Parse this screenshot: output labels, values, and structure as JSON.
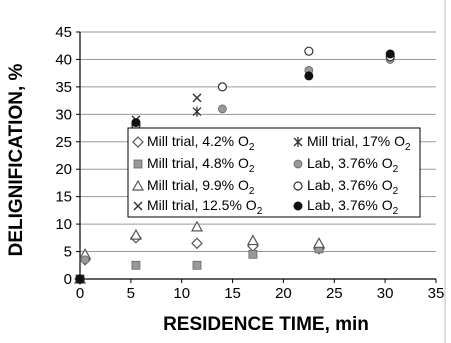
{
  "chart_data": {
    "type": "scatter",
    "title": "",
    "xlabel": "RESIDENCE TIME, min",
    "ylabel": "DELIGNIFICATION, %",
    "xlim": [
      0,
      35
    ],
    "ylim": [
      0,
      45
    ],
    "xticks": [
      0,
      5,
      10,
      15,
      20,
      25,
      30,
      35
    ],
    "yticks": [
      0,
      5,
      10,
      15,
      20,
      25,
      30,
      35,
      40,
      45
    ],
    "grid": "horizontal",
    "legend_position": "center",
    "series": [
      {
        "name": "Mill trial, 4.2% O",
        "sub": "2",
        "marker": "diamond-open",
        "color": "#555555",
        "x": [
          0,
          0.5,
          5.5,
          11.5,
          17,
          23.5
        ],
        "y": [
          0,
          3.5,
          7.5,
          6.5,
          6,
          5.5
        ]
      },
      {
        "name": "Mill trial, 4.8% O",
        "sub": "2",
        "marker": "square-filled",
        "color": "#999999",
        "x": [
          0,
          5.5,
          11.5,
          17,
          23.5
        ],
        "y": [
          0,
          2.5,
          2.5,
          4.5,
          5.5
        ]
      },
      {
        "name": "Mill trial, 9.9% O",
        "sub": "2",
        "marker": "triangle-open",
        "color": "#555555",
        "x": [
          0,
          0.5,
          5.5,
          11.5,
          17,
          23.5
        ],
        "y": [
          0,
          4.5,
          8,
          9.5,
          7,
          6.5
        ]
      },
      {
        "name": "Mill trial, 12.5% O",
        "sub": "2",
        "marker": "x",
        "color": "#333333",
        "x": [
          0,
          5.5,
          11.5
        ],
        "y": [
          0,
          29,
          33
        ]
      },
      {
        "name": "Mill trial, 17% O",
        "sub": "2",
        "marker": "asterisk",
        "color": "#333333",
        "x": [
          0,
          11.5
        ],
        "y": [
          0,
          30.5
        ]
      },
      {
        "name": "Lab, 3.76% O",
        "sub": "2",
        "marker": "circle-gray",
        "color": "#999999",
        "x": [
          0,
          0.5,
          5.5,
          14,
          22.5,
          30.5
        ],
        "y": [
          0,
          3.5,
          27.5,
          31,
          38,
          40
        ]
      },
      {
        "name": "Lab, 3.76% O",
        "sub": "2",
        "marker": "circle-open",
        "color": "#333333",
        "x": [
          0,
          5.5,
          14,
          22.5,
          30.5
        ],
        "y": [
          0,
          28,
          35,
          41.5,
          40.5
        ]
      },
      {
        "name": "Lab, 3.76% O",
        "sub": "2",
        "marker": "circle-filled",
        "color": "#111111",
        "x": [
          0,
          5.5,
          22.5,
          30.5
        ],
        "y": [
          0,
          28.5,
          37,
          41
        ]
      }
    ],
    "legend_layout": [
      [
        0,
        4
      ],
      [
        1,
        5
      ],
      [
        2,
        6
      ],
      [
        3,
        7
      ]
    ]
  }
}
